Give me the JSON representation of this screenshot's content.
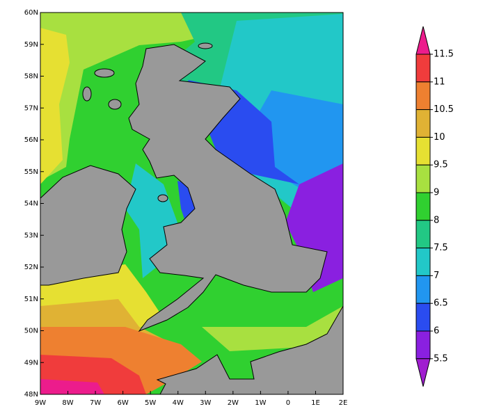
{
  "map": {
    "lat_labels": [
      "60N",
      "59N",
      "58N",
      "57N",
      "56N",
      "55N",
      "54N",
      "53N",
      "52N",
      "51N",
      "50N",
      "49N",
      "48N"
    ],
    "lon_labels": [
      "9W",
      "8W",
      "7W",
      "6W",
      "5W",
      "4W",
      "3W",
      "2W",
      "1W",
      "0",
      "1E",
      "2E"
    ],
    "colorbar": {
      "labels": [
        "11.5",
        "11",
        "10.5",
        "10",
        "9.5",
        "9",
        "8",
        "7.5",
        "7",
        "6.5",
        "6",
        "5.5"
      ],
      "top_color": "#ec1c8c",
      "band_colors": [
        "#f03c3c",
        "#ee8030",
        "#e0b234",
        "#e6e032",
        "#a8e040",
        "#30d030",
        "#22c884",
        "#22c8c8",
        "#2196f0",
        "#2a4cf0",
        "#8a20e0"
      ],
      "bottom_color": "#a01ed0"
    }
  }
}
